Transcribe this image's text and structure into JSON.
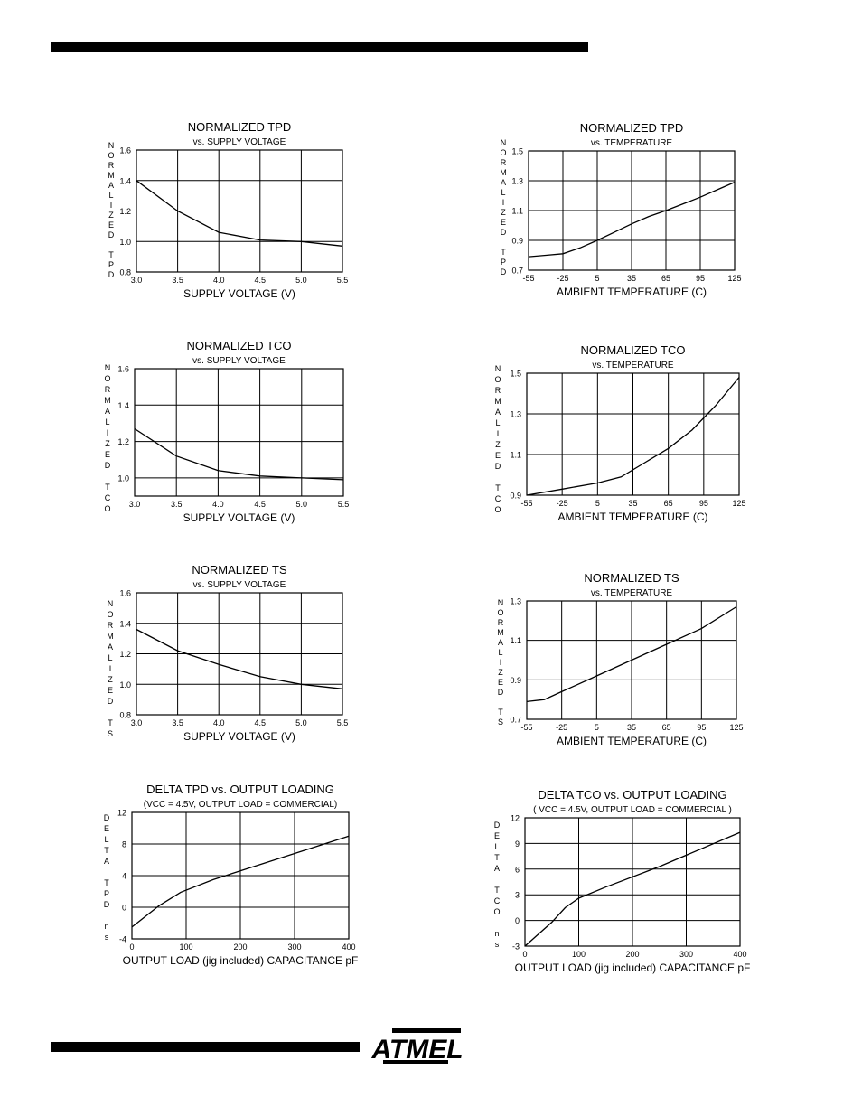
{
  "colors": {
    "ink": "#000000",
    "paper": "#ffffff"
  },
  "logo": {
    "text": "ATMEL"
  },
  "chart_data": [
    {
      "type": "line",
      "title": "NORMALIZED TPD",
      "subtitle": "vs. SUPPLY VOLTAGE",
      "xlabel": "SUPPLY VOLTAGE (V)",
      "ylabel": [
        "N",
        "O",
        "R",
        "M",
        "A",
        "L",
        "I",
        "Z",
        "E",
        "D",
        "",
        "T",
        "P",
        "D"
      ],
      "xticks": [
        "3.0",
        "3.5",
        "4.0",
        "4.5",
        "5.0",
        "5.5"
      ],
      "yticks": [
        "0.8",
        "1.0",
        "1.2",
        "1.4",
        "1.6"
      ],
      "xlim": [
        3.0,
        5.5
      ],
      "ylim": [
        0.8,
        1.6
      ],
      "x": [
        3.0,
        3.5,
        4.0,
        4.5,
        5.0,
        5.5
      ],
      "values": [
        1.4,
        1.2,
        1.06,
        1.01,
        1.0,
        0.97
      ]
    },
    {
      "type": "line",
      "title": "NORMALIZED TPD",
      "subtitle": "vs. TEMPERATURE",
      "xlabel": "AMBIENT TEMPERATURE (C)",
      "ylabel": [
        "N",
        "O",
        "R",
        "M",
        "A",
        "L",
        "I",
        "Z",
        "E",
        "D",
        "",
        "T",
        "P",
        "D"
      ],
      "xticks": [
        "-55",
        "-25",
        "5",
        "35",
        "65",
        "95",
        "125"
      ],
      "yticks": [
        "0.7",
        "0.9",
        "1.1",
        "1.3",
        "1.5"
      ],
      "xlim": [
        -55,
        125
      ],
      "ylim": [
        0.7,
        1.5
      ],
      "x": [
        -55,
        -40,
        -25,
        -10,
        5,
        20,
        35,
        50,
        65,
        80,
        95,
        110,
        125
      ],
      "values": [
        0.79,
        0.8,
        0.81,
        0.85,
        0.9,
        0.955,
        1.01,
        1.06,
        1.1,
        1.145,
        1.19,
        1.24,
        1.29
      ]
    },
    {
      "type": "line",
      "title": "NORMALIZED TCO",
      "subtitle": "vs. SUPPLY VOLTAGE",
      "xlabel": "SUPPLY VOLTAGE (V)",
      "ylabel": [
        "N",
        "O",
        "R",
        "M",
        "A",
        "L",
        "I",
        "Z",
        "E",
        "D",
        "",
        "T",
        "C",
        "O"
      ],
      "xticks": [
        "3.0",
        "3.5",
        "4.0",
        "4.5",
        "5.0",
        "5.5"
      ],
      "yticks": [
        "1.0",
        "1.2",
        "1.4",
        "1.6"
      ],
      "xlim": [
        3.0,
        5.5
      ],
      "ylim": [
        0.9,
        1.6
      ],
      "x": [
        3.0,
        3.5,
        4.0,
        4.5,
        5.0,
        5.5
      ],
      "values": [
        1.27,
        1.12,
        1.04,
        1.01,
        1.0,
        0.99
      ]
    },
    {
      "type": "line",
      "title": "NORMALIZED TCO",
      "subtitle": "vs. TEMPERATURE",
      "xlabel": "AMBIENT TEMPERATURE (C)",
      "ylabel": [
        "N",
        "O",
        "R",
        "M",
        "A",
        "L",
        "I",
        "Z",
        "E",
        "D",
        "",
        "T",
        "C",
        "O"
      ],
      "xticks": [
        "-55",
        "-25",
        "5",
        "35",
        "65",
        "95",
        "125"
      ],
      "yticks": [
        "0.9",
        "1.1",
        "1.3",
        "1.5"
      ],
      "xlim": [
        -55,
        125
      ],
      "ylim": [
        0.9,
        1.5
      ],
      "x": [
        -55,
        -25,
        5,
        25,
        45,
        65,
        85,
        105,
        125
      ],
      "values": [
        0.9,
        0.93,
        0.96,
        0.99,
        1.06,
        1.13,
        1.22,
        1.34,
        1.48
      ]
    },
    {
      "type": "line",
      "title": "NORMALIZED TS",
      "subtitle": "vs. SUPPLY VOLTAGE",
      "xlabel": "SUPPLY VOLTAGE (V)",
      "ylabel": [
        "N",
        "O",
        "R",
        "M",
        "A",
        "L",
        "I",
        "Z",
        "E",
        "D",
        "",
        "T",
        "S"
      ],
      "xticks": [
        "3.0",
        "3.5",
        "4.0",
        "4.5",
        "5.0",
        "5.5"
      ],
      "yticks": [
        "0.8",
        "1.0",
        "1.2",
        "1.4",
        "1.6"
      ],
      "xlim": [
        3.0,
        5.5
      ],
      "ylim": [
        0.8,
        1.6
      ],
      "x": [
        3.0,
        3.5,
        4.0,
        4.5,
        5.0,
        5.5
      ],
      "values": [
        1.36,
        1.22,
        1.13,
        1.05,
        1.0,
        0.97
      ]
    },
    {
      "type": "line",
      "title": "NORMALIZED TS",
      "subtitle": "vs. TEMPERATURE",
      "xlabel": "AMBIENT TEMPERATURE (C)",
      "ylabel": [
        "N",
        "O",
        "R",
        "M",
        "A",
        "L",
        "I",
        "Z",
        "E",
        "D",
        "",
        "T",
        "S"
      ],
      "xticks": [
        "-55",
        "-25",
        "5",
        "35",
        "65",
        "95",
        "125"
      ],
      "yticks": [
        "0.7",
        "0.9",
        "1.1",
        "1.3"
      ],
      "xlim": [
        -55,
        125
      ],
      "ylim": [
        0.7,
        1.3
      ],
      "x": [
        -55,
        -40,
        -25,
        5,
        35,
        65,
        95,
        125
      ],
      "values": [
        0.79,
        0.8,
        0.84,
        0.92,
        1.0,
        1.08,
        1.16,
        1.27
      ]
    },
    {
      "type": "line",
      "title": "DELTA TPD vs. OUTPUT LOADING",
      "subtitle": "(VCC = 4.5V, OUTPUT LOAD = COMMERCIAL)",
      "xlabel": "OUTPUT LOAD (jig included) CAPACITANCE pF",
      "ylabel": [
        "D",
        "E",
        "L",
        "T",
        "A",
        "",
        "T",
        "P",
        "D",
        "",
        "n",
        "s"
      ],
      "xticks": [
        "0",
        "100",
        "200",
        "300",
        "400"
      ],
      "yticks": [
        "-4",
        "0",
        "4",
        "8",
        "12"
      ],
      "xlim": [
        0,
        400
      ],
      "ylim": [
        -4,
        12
      ],
      "x": [
        0,
        50,
        90,
        150,
        250,
        400
      ],
      "values": [
        -2.5,
        0.2,
        1.9,
        3.5,
        5.7,
        9.0
      ]
    },
    {
      "type": "line",
      "title": "DELTA TCO vs. OUTPUT LOADING",
      "subtitle": "( VCC = 4.5V, OUTPUT LOAD = COMMERCIAL )",
      "xlabel": "OUTPUT LOAD (jig included) CAPACITANCE pF",
      "ylabel": [
        "D",
        "E",
        "L",
        "T",
        "A",
        "",
        "T",
        "C",
        "O",
        "",
        "n",
        "s"
      ],
      "xticks": [
        "0",
        "100",
        "200",
        "300",
        "400"
      ],
      "yticks": [
        "-3",
        "0",
        "3",
        "6",
        "9",
        "12"
      ],
      "xlim": [
        0,
        400
      ],
      "ylim": [
        -3,
        12
      ],
      "x": [
        0,
        50,
        75,
        100,
        150,
        250,
        400
      ],
      "values": [
        -3.0,
        -0.2,
        1.5,
        2.6,
        3.9,
        6.3,
        10.3
      ]
    }
  ]
}
